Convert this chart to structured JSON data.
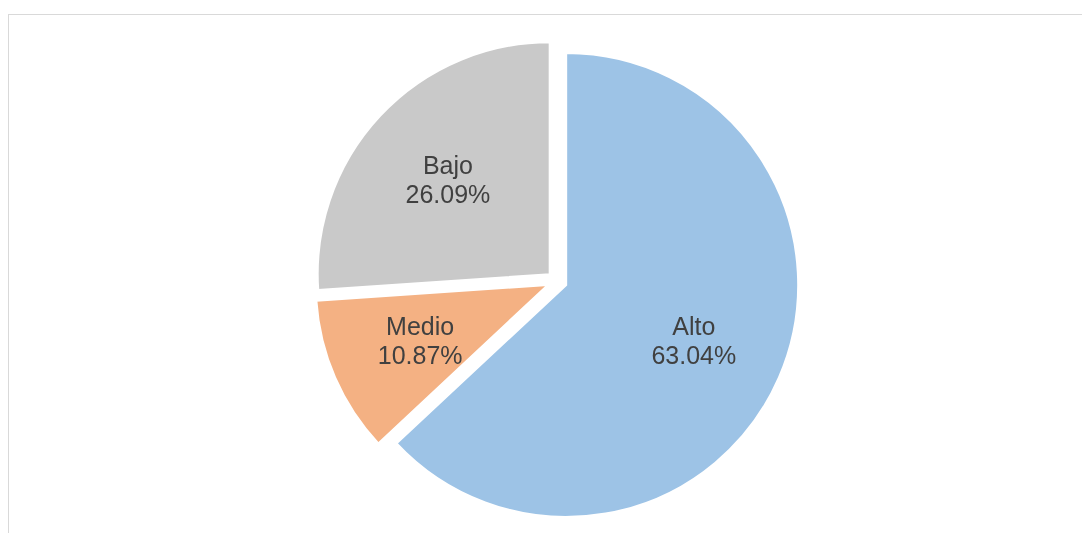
{
  "chart_data": {
    "type": "pie",
    "categories": [
      "Alto",
      "Medio",
      "Bajo"
    ],
    "values": [
      63.04,
      10.87,
      26.09
    ],
    "colors": [
      "#9dc3e6",
      "#f4b183",
      "#c9c9c9"
    ],
    "value_labels": [
      "63.04%",
      "10.87%",
      "26.09%"
    ]
  }
}
